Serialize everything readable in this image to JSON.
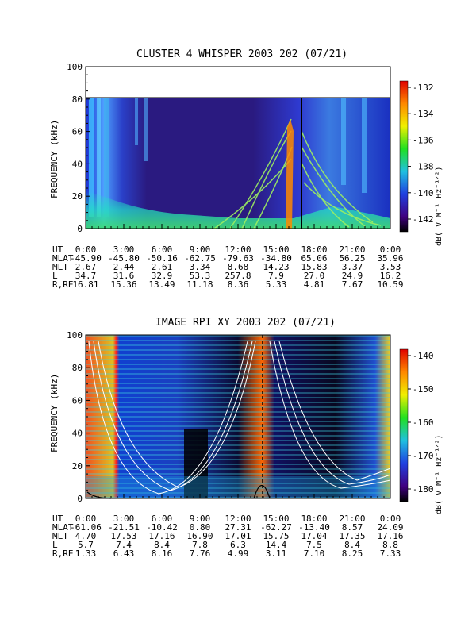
{
  "panels": [
    {
      "title": "CLUSTER 4 WHISPER 2003 202 (07/21)",
      "ylabel": "FREQUENCY (kHz)",
      "yticks": [
        "0",
        "20",
        "40",
        "60",
        "80",
        "100"
      ],
      "xticks": [
        "0:00",
        "3:00",
        "6:00",
        "9:00",
        "12:00",
        "15:00",
        "18:00",
        "21:00",
        "0:00"
      ],
      "cbar_label": "dB( V M⁻¹ Hz⁻¹ᐟ²)",
      "cbar_ticks": [
        "-132",
        "-134",
        "-136",
        "-138",
        "-140",
        "-142"
      ],
      "eph": [
        {
          "label": "UT",
          "values": [
            "0:00",
            "3:00",
            "6:00",
            "9:00",
            "12:00",
            "15:00",
            "18:00",
            "21:00",
            "0:00"
          ]
        },
        {
          "label": "MLAT",
          "values": [
            "-45.90",
            "-45.80",
            "-50.16",
            "-62.75",
            "-79.63",
            "-34.80",
            "65.06",
            "56.25",
            "35.96"
          ]
        },
        {
          "label": "MLT",
          "values": [
            "2.67",
            "2.44",
            "2.61",
            "3.34",
            "8.68",
            "14.23",
            "15.83",
            "3.37",
            "3.53"
          ]
        },
        {
          "label": "L",
          "values": [
            "34.7",
            "31.6",
            "32.9",
            "53.3",
            "257.8",
            "7.9",
            "27.0",
            "24.9",
            "16.2"
          ]
        },
        {
          "label": "R,RE",
          "values": [
            "16.81",
            "15.36",
            "13.49",
            "11.18",
            "8.36",
            "5.33",
            "4.81",
            "7.67",
            "10.59"
          ]
        }
      ]
    },
    {
      "title": "IMAGE RPI XY 2003 202 (07/21)",
      "ylabel": "FREQUENCY (kHz)",
      "yticks": [
        "0",
        "20",
        "40",
        "60",
        "80",
        "100"
      ],
      "xticks": [
        "0:00",
        "3:00",
        "6:00",
        "9:00",
        "12:00",
        "15:00",
        "18:00",
        "21:00",
        "0:00"
      ],
      "cbar_label": "dB( V M⁻¹ Hz⁻¹ᐟ²)",
      "cbar_ticks": [
        "-140",
        "-150",
        "-160",
        "-170",
        "-180"
      ],
      "eph": [
        {
          "label": "UT",
          "values": [
            "0:00",
            "3:00",
            "6:00",
            "9:00",
            "12:00",
            "15:00",
            "18:00",
            "21:00",
            "0:00"
          ]
        },
        {
          "label": "MLAT",
          "values": [
            "-61.06",
            "-21.51",
            "-10.42",
            "0.80",
            "27.31",
            "-62.27",
            "-13.40",
            "8.57",
            "24.09"
          ]
        },
        {
          "label": "MLT",
          "values": [
            "4.70",
            "17.53",
            "17.16",
            "16.90",
            "17.01",
            "15.75",
            "17.04",
            "17.35",
            "17.16"
          ]
        },
        {
          "label": "L",
          "values": [
            "5.7",
            "7.4",
            "8.4",
            "7.8",
            "6.3",
            "14.4",
            "7.5",
            "8.4",
            "8.8"
          ]
        },
        {
          "label": "R,RE",
          "values": [
            "1.33",
            "6.43",
            "8.16",
            "7.76",
            "4.99",
            "3.11",
            "7.10",
            "8.25",
            "7.33"
          ]
        }
      ]
    }
  ],
  "chart_data": [
    {
      "type": "heatmap",
      "title": "CLUSTER 4 WHISPER 2003 202 (07/21)",
      "ylabel": "FREQUENCY (kHz)",
      "xlabel": "UT",
      "x_range_hours": [
        0,
        24
      ],
      "ylim": [
        0,
        100
      ],
      "data_ceiling_khz": 80,
      "colorbar_range_db": [
        -143,
        -131
      ],
      "colormap": "rainbow (black → purple → blue → cyan → green → yellow → red)"
    },
    {
      "type": "heatmap",
      "title": "IMAGE RPI XY 2003 202 (07/21)",
      "ylabel": "FREQUENCY (kHz)",
      "xlabel": "UT",
      "x_range_hours": [
        0,
        24
      ],
      "ylim": [
        0,
        100
      ],
      "colorbar_range_db": [
        -185,
        -137
      ],
      "colormap": "rainbow (black → purple → blue → cyan → green → yellow → red)"
    }
  ]
}
